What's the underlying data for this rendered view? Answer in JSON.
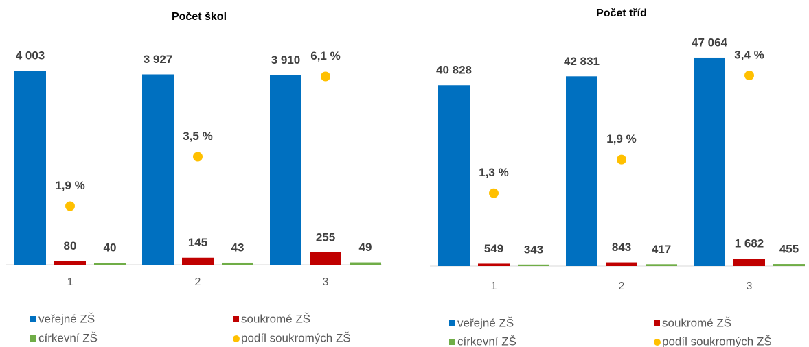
{
  "chart_data": [
    {
      "type": "bar",
      "title": "Počet škol",
      "categories": [
        "1",
        "2",
        "3"
      ],
      "ylim": [
        0,
        4500
      ],
      "y2lim": [
        0,
        7
      ],
      "series": [
        {
          "name": "veřejné ZŠ",
          "color": "#0070c0",
          "values": [
            4003,
            3927,
            3910
          ],
          "value_labels": [
            "4 003",
            "3 927",
            "3 910"
          ]
        },
        {
          "name": "soukromé ZŠ",
          "color": "#c00000",
          "values": [
            80,
            145,
            255
          ]
        },
        {
          "name": "církevní ZŠ",
          "color": "#70ad47",
          "values": [
            40,
            43,
            49
          ]
        },
        {
          "name": "podíl soukromých ZŠ",
          "color": "#ffc000",
          "axis": "y2",
          "values": [
            1.9,
            3.5,
            6.1
          ],
          "value_labels": [
            "1,9 %",
            "3,5 %",
            "6,1 %"
          ]
        }
      ]
    },
    {
      "type": "bar",
      "title": "Počet tříd",
      "categories": [
        "1",
        "2",
        "3"
      ],
      "ylim": [
        0,
        50000
      ],
      "y2lim": [
        0,
        4
      ],
      "series": [
        {
          "name": "veřejné ZŠ",
          "color": "#0070c0",
          "values": [
            40828,
            42831,
            47064
          ],
          "value_labels": [
            "40 828",
            "42 831",
            "47 064"
          ]
        },
        {
          "name": "soukromé ZŠ",
          "color": "#c00000",
          "values": [
            549,
            843,
            1682
          ],
          "value_labels": [
            "549",
            "843",
            "1 682"
          ]
        },
        {
          "name": "církevní ZŠ",
          "color": "#70ad47",
          "values": [
            343,
            417,
            455
          ]
        },
        {
          "name": "podíl soukromých ZŠ",
          "color": "#ffc000",
          "axis": "y2",
          "values": [
            1.3,
            1.9,
            3.4
          ],
          "value_labels": [
            "1,3 %",
            "1,9 %",
            "3,4 %"
          ]
        }
      ]
    }
  ]
}
